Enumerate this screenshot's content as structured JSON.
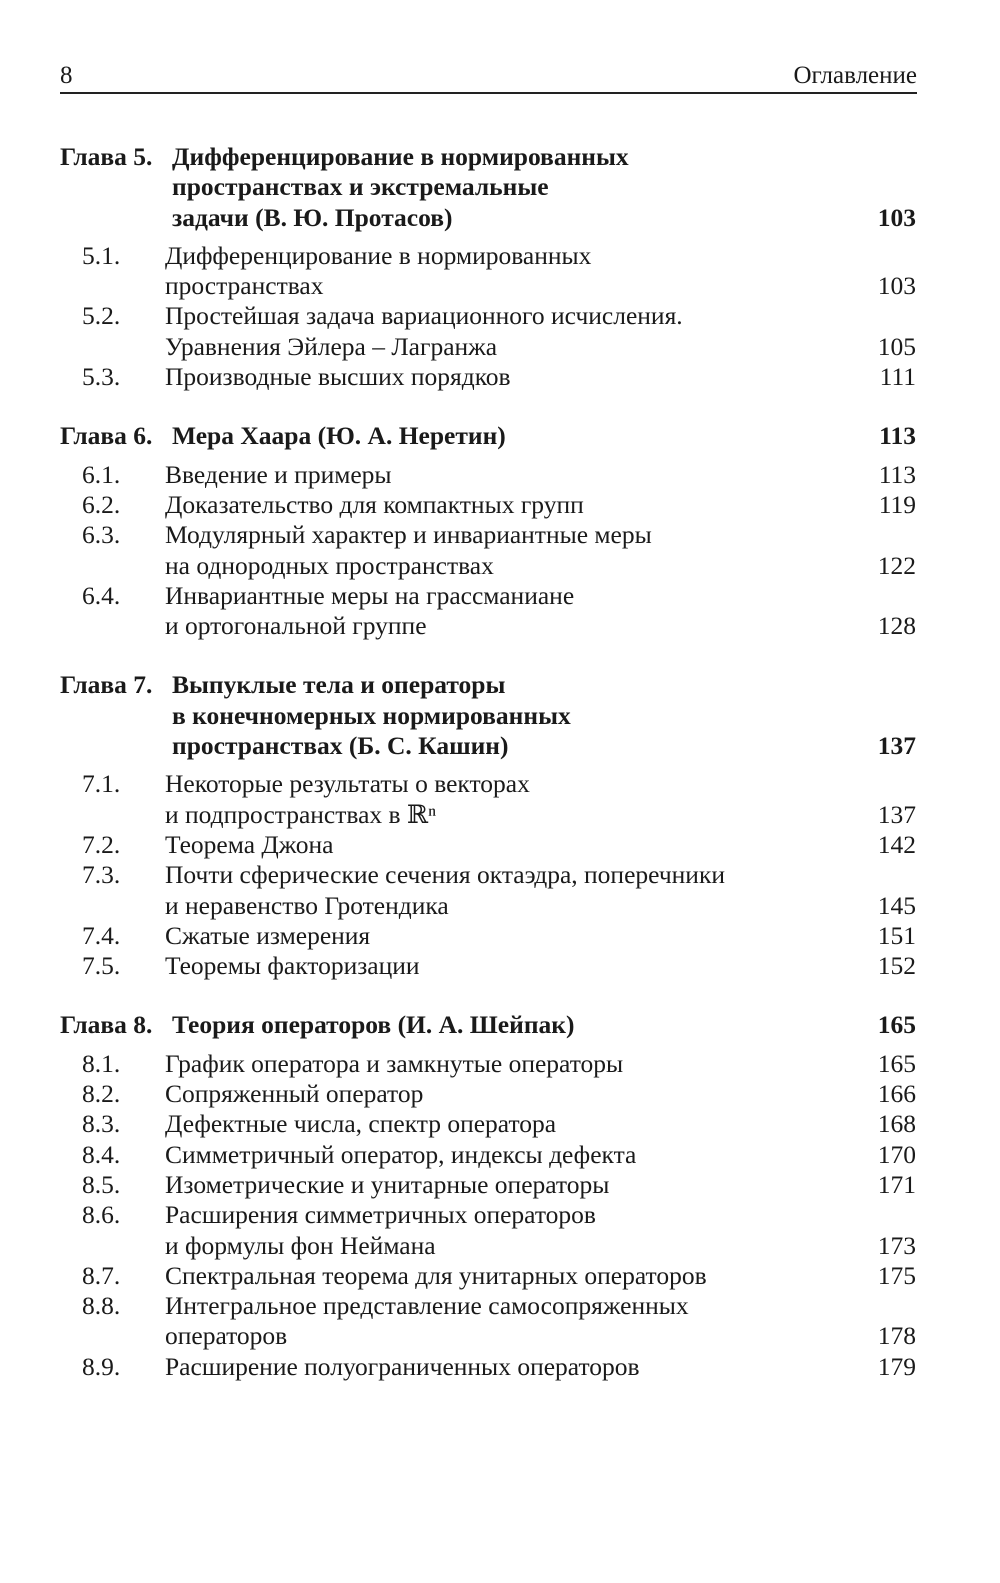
{
  "header": {
    "page_number": "8",
    "title": "Оглавление"
  },
  "chapters": [
    {
      "label": "Глава 5.",
      "lines": [
        "Дифференцирование в нормированных",
        "пространствах и экстремальные",
        "задачи (В. Ю. Протасов)"
      ],
      "page": "103",
      "sections": [
        {
          "num": "5.1.",
          "lines": [
            "Дифференцирование в нормированных",
            "пространствах"
          ],
          "page": "103"
        },
        {
          "num": "5.2.",
          "lines": [
            "Простейшая задача вариационного исчисления.",
            "Уравнения Эйлера – Лагранжа"
          ],
          "page": "105"
        },
        {
          "num": "5.3.",
          "lines": [
            "Производные высших порядков"
          ],
          "page": "111"
        }
      ]
    },
    {
      "label": "Глава 6.",
      "lines": [
        "Мера Хаара (Ю. А. Неретин)"
      ],
      "page": "113",
      "sections": [
        {
          "num": "6.1.",
          "lines": [
            "Введение и примеры"
          ],
          "page": "113"
        },
        {
          "num": "6.2.",
          "lines": [
            "Доказательство для компактных групп"
          ],
          "page": "119"
        },
        {
          "num": "6.3.",
          "lines": [
            "Модулярный характер и инвариантные меры",
            "на однородных пространствах"
          ],
          "page": "122"
        },
        {
          "num": "6.4.",
          "lines": [
            "Инвариантные меры на грассманиане",
            "и ортогональной группе"
          ],
          "page": "128"
        }
      ]
    },
    {
      "label": "Глава 7.",
      "lines": [
        "Выпуклые тела и операторы",
        "в конечномерных нормированных",
        "пространствах (Б. С. Кашин)"
      ],
      "page": "137",
      "sections": [
        {
          "num": "7.1.",
          "lines": [
            "Некоторые результаты о векторах",
            "и подпространствах в ℝⁿ"
          ],
          "page": "137"
        },
        {
          "num": "7.2.",
          "lines": [
            "Теорема Джона"
          ],
          "page": "142"
        },
        {
          "num": "7.3.",
          "lines": [
            "Почти сферические сечения октаэдра, поперечники",
            "и неравенство Гротендика"
          ],
          "page": "145"
        },
        {
          "num": "7.4.",
          "lines": [
            "Сжатые измерения"
          ],
          "page": "151"
        },
        {
          "num": "7.5.",
          "lines": [
            "Теоремы факторизации"
          ],
          "page": "152"
        }
      ]
    },
    {
      "label": "Глава 8.",
      "lines": [
        "Теория операторов (И. А. Шейпак)"
      ],
      "page": "165",
      "sections": [
        {
          "num": "8.1.",
          "lines": [
            "График оператора и замкнутые операторы"
          ],
          "page": "165"
        },
        {
          "num": "8.2.",
          "lines": [
            "Сопряженный оператор"
          ],
          "page": "166"
        },
        {
          "num": "8.3.",
          "lines": [
            "Дефектные числа, спектр оператора"
          ],
          "page": "168"
        },
        {
          "num": "8.4.",
          "lines": [
            "Симметричный оператор, индексы дефекта"
          ],
          "page": "170"
        },
        {
          "num": "8.5.",
          "lines": [
            "Изометрические и унитарные операторы"
          ],
          "page": "171"
        },
        {
          "num": "8.6.",
          "lines": [
            "Расширения симметричных операторов",
            "и формулы фон Неймана"
          ],
          "page": "173"
        },
        {
          "num": "8.7.",
          "lines": [
            "Спектральная теорема для унитарных операторов"
          ],
          "page": "175"
        },
        {
          "num": "8.8.",
          "lines": [
            "Интегральное представление самосопряженных",
            "операторов"
          ],
          "page": "178"
        },
        {
          "num": "8.9.",
          "lines": [
            "Расширение полуограниченных операторов"
          ],
          "page": "179"
        }
      ]
    }
  ]
}
